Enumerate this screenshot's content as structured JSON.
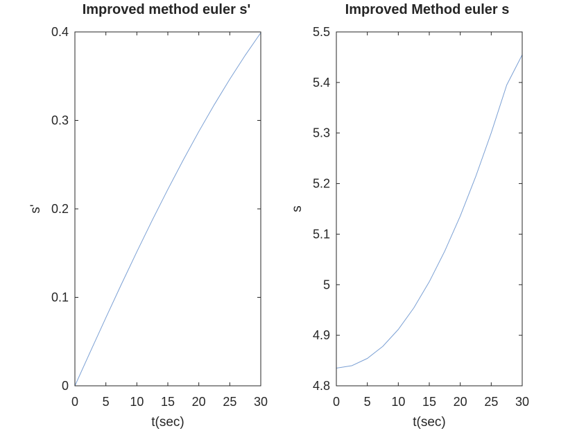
{
  "chart_data": [
    {
      "type": "line",
      "title": "Improved method euler s'",
      "xlabel": "t(sec)",
      "ylabel": "s'",
      "xlim": [
        0,
        30
      ],
      "ylim": [
        0,
        0.4
      ],
      "xticks": [
        "0",
        "5",
        "10",
        "15",
        "20",
        "25",
        "30"
      ],
      "yticks": [
        "0",
        "0.1",
        "0.2",
        "0.3",
        "0.4"
      ],
      "grid": false,
      "line_color": "#7ba0d4",
      "series": [
        {
          "x": [
            0,
            2.5,
            5,
            7.5,
            10,
            12.5,
            15,
            17.5,
            20,
            22.5,
            25,
            27.5,
            30
          ],
          "values": [
            0,
            0.0387,
            0.077,
            0.1147,
            0.1515,
            0.1874,
            0.222,
            0.2554,
            0.2874,
            0.3178,
            0.3466,
            0.3737,
            0.399
          ]
        }
      ]
    },
    {
      "type": "line",
      "title": "Improved Method euler s",
      "xlabel": "t(sec)",
      "ylabel": "s",
      "xlim": [
        0,
        30
      ],
      "ylim": [
        4.8,
        5.5
      ],
      "xticks": [
        "0",
        "5",
        "10",
        "15",
        "20",
        "25",
        "30"
      ],
      "yticks": [
        "4.8",
        "4.9",
        "5",
        "5.1",
        "5.2",
        "5.3",
        "5.4",
        "5.5"
      ],
      "grid": false,
      "line_color": "#7ba0d4",
      "series": [
        {
          "x": [
            0,
            2.5,
            5,
            7.5,
            10,
            12.5,
            15,
            17.5,
            20,
            22.5,
            25,
            27.5,
            30
          ],
          "values": [
            4.835,
            4.8398,
            4.8542,
            4.8781,
            4.9115,
            4.9541,
            5.0058,
            5.0665,
            5.1359,
            5.214,
            5.3004,
            5.395,
            5.4547
          ]
        }
      ]
    }
  ]
}
